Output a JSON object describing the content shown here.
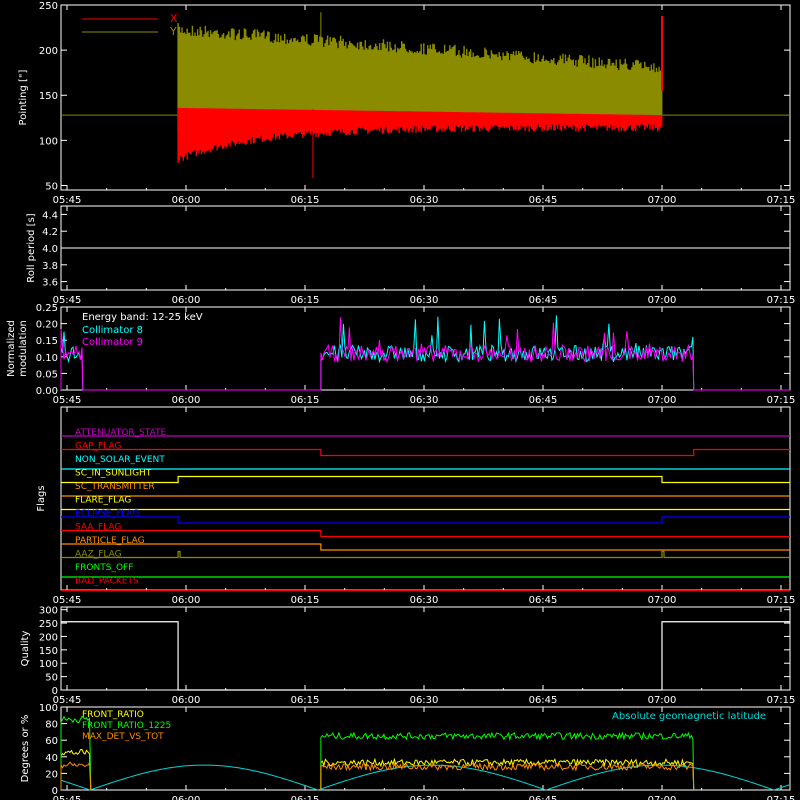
{
  "colors": {
    "bg": "#000000",
    "axis": "#ffffff",
    "red": "#ff0000",
    "olive": "#8b8b00",
    "cyan": "#00ffff",
    "magenta": "#ff00ff",
    "yellow": "#ffff00",
    "orange": "#ff8c00",
    "blue": "#0000ff",
    "green": "#00ff00",
    "purple": "#c000c0",
    "darkorange": "#e07000"
  },
  "time_ticks": [
    "05:45",
    "06:00",
    "06:15",
    "06:30",
    "06:45",
    "07:00",
    "07:15"
  ],
  "chart_data": [
    {
      "type": "line",
      "ylabel": "Pointing [\"]",
      "ylim": [
        45,
        250
      ],
      "yticks": [
        50,
        100,
        150,
        200,
        250
      ],
      "legend": [
        {
          "name": "X",
          "color": "#ff0000"
        },
        {
          "name": "Y",
          "color": "#8b8b00"
        }
      ],
      "constant_line": 128,
      "data_span": [
        "05:59",
        "07:00"
      ],
      "series": [
        {
          "name": "X",
          "band_start": [
            75,
            140
          ],
          "band_end": [
            110,
            135
          ],
          "spike": {
            "t": "06:16",
            "lo": 58,
            "hi": 135
          }
        },
        {
          "name": "Y",
          "band_start": [
            105,
            230
          ],
          "band_end": [
            122,
            188
          ],
          "spike": {
            "t": "06:17",
            "lo": 140,
            "hi": 242
          }
        }
      ]
    },
    {
      "type": "line",
      "ylabel": "Roll period [s]",
      "ylim": [
        3.5,
        4.5
      ],
      "yticks": [
        "3.6",
        "3.8",
        "4.0",
        "4.2",
        "4.4"
      ],
      "series": [
        {
          "name": "roll",
          "value": 4.0
        }
      ]
    },
    {
      "type": "line",
      "ylabel_lines": [
        "Normalized",
        "modulation"
      ],
      "ylim": [
        0,
        0.25
      ],
      "yticks": [
        "0.00",
        "0.05",
        "0.10",
        "0.15",
        "0.20",
        "0.25"
      ],
      "annotation": "Energy band: 12-25 keV",
      "series": [
        {
          "name": "Collimator 8",
          "color": "#00ffff"
        },
        {
          "name": "Collimator 9",
          "color": "#ff00ff"
        }
      ],
      "segments": [
        {
          "from": "05:44",
          "to": "05:47",
          "level": 0.11
        },
        {
          "from": "06:17",
          "to": "07:04",
          "level": 0.11
        }
      ]
    },
    {
      "type": "line",
      "ylabel": "Flags",
      "flags": [
        {
          "name": "ATTENUATOR_STATE",
          "color": "#c000c0",
          "low": [],
          "high": [
            [
              "05:40",
              "07:30"
            ]
          ]
        },
        {
          "name": "GAP_FLAG",
          "color": "#ff0000",
          "high": [
            [
              "05:40",
              "06:17"
            ],
            [
              "07:04",
              "07:30"
            ]
          ]
        },
        {
          "name": "NON_SOLAR_EVENT",
          "color": "#00ffff",
          "high": []
        },
        {
          "name": "SC_IN_SUNLIGHT",
          "color": "#ffff00",
          "high": [
            [
              "05:59",
              "07:00"
            ]
          ]
        },
        {
          "name": "SC_TRANSMITTER",
          "color": "#ff8c00",
          "high": []
        },
        {
          "name": "FLARE_FLAG",
          "color": "#ffff00",
          "high": []
        },
        {
          "name": "ECLIPSE_FLAG",
          "color": "#0000ff",
          "high": [
            [
              "05:40",
              "05:59"
            ],
            [
              "07:00",
              "07:30"
            ]
          ]
        },
        {
          "name": "SAA_FLAG",
          "color": "#ff0000",
          "high": [
            [
              "05:40",
              "06:17"
            ]
          ]
        },
        {
          "name": "PARTICLE_FLAG",
          "color": "#ff8c00",
          "high": [
            [
              "05:40",
              "06:17"
            ]
          ]
        },
        {
          "name": "AAZ_FLAG",
          "color": "#8b8b00",
          "pulses": [
            "05:59",
            "07:00"
          ]
        },
        {
          "name": "FRONTS_OFF",
          "color": "#00ff00",
          "high": []
        },
        {
          "name": "BAD_PACKETS",
          "color": "#ff0000",
          "high": []
        }
      ]
    },
    {
      "type": "line",
      "ylabel": "Quality",
      "ylim": [
        0,
        310
      ],
      "yticks": [
        0,
        50,
        100,
        150,
        200,
        250,
        300
      ],
      "series": [
        {
          "name": "quality",
          "levels": [
            {
              "from": "05:40",
              "to": "05:59",
              "value": 255
            },
            {
              "from": "05:59",
              "to": "07:00",
              "value": 0
            },
            {
              "from": "07:00",
              "to": "07:30",
              "value": 255
            }
          ]
        }
      ]
    },
    {
      "type": "line",
      "ylabel": "Degrees or %",
      "ylim": [
        0,
        100
      ],
      "yticks": [
        0,
        20,
        40,
        60,
        80,
        100
      ],
      "series": [
        {
          "name": "FRONT_RATIO",
          "color": "#ffff00",
          "level": 33
        },
        {
          "name": "FRONT_RATIO_1225",
          "color": "#00ff00",
          "level": 65
        },
        {
          "name": "MAX_DET_VS_TOT",
          "color": "#ff8c00",
          "level": 28
        },
        {
          "name": "Absolute geomagnetic latitude",
          "color": "#00d8d8",
          "peaks": 30
        }
      ]
    }
  ]
}
